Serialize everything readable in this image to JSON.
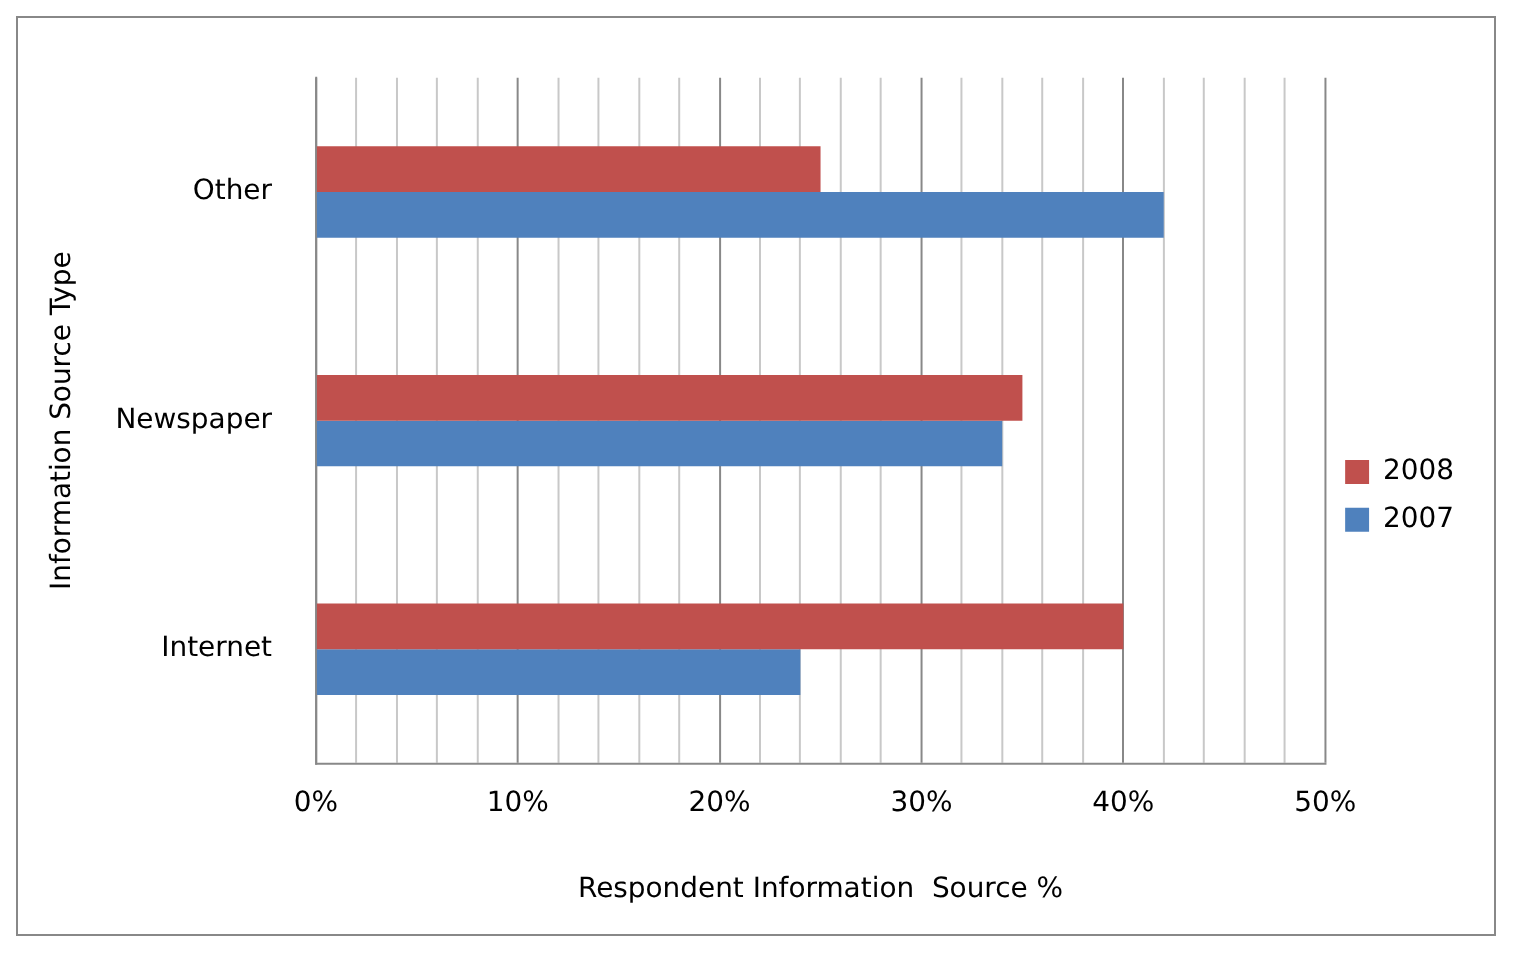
{
  "chart_data": {
    "type": "bar",
    "orientation": "horizontal",
    "categories": [
      "Other",
      "Newspaper",
      "Internet"
    ],
    "series": [
      {
        "name": "2008",
        "color": "#c0504d",
        "values": [
          25,
          35,
          40
        ]
      },
      {
        "name": "2007",
        "color": "#4f81bd",
        "values": [
          42,
          34,
          24
        ]
      }
    ],
    "xlabel": "Respondent Information  Source %",
    "ylabel": "Information Source Type",
    "xlim": [
      0,
      50
    ],
    "xticks": [
      {
        "value": 0,
        "label": "0%"
      },
      {
        "value": 2,
        "label": null
      },
      {
        "value": 4,
        "label": null
      },
      {
        "value": 6,
        "label": null
      },
      {
        "value": 8,
        "label": null
      },
      {
        "value": 10,
        "label": "10%"
      },
      {
        "value": 12,
        "label": null
      },
      {
        "value": 14,
        "label": null
      },
      {
        "value": 16,
        "label": null
      },
      {
        "value": 18,
        "label": null
      },
      {
        "value": 20,
        "label": "20%"
      },
      {
        "value": 22,
        "label": null
      },
      {
        "value": 24,
        "label": null
      },
      {
        "value": 26,
        "label": null
      },
      {
        "value": 28,
        "label": null
      },
      {
        "value": 30,
        "label": "30%"
      },
      {
        "value": 32,
        "label": null
      },
      {
        "value": 34,
        "label": null
      },
      {
        "value": 36,
        "label": null
      },
      {
        "value": 38,
        "label": null
      },
      {
        "value": 40,
        "label": "40%"
      },
      {
        "value": 42,
        "label": null
      },
      {
        "value": 44,
        "label": null
      },
      {
        "value": 46,
        "label": null
      },
      {
        "value": 48,
        "label": null
      },
      {
        "value": 50,
        "label": "50%"
      }
    ],
    "grid": "x",
    "legend": "right"
  }
}
